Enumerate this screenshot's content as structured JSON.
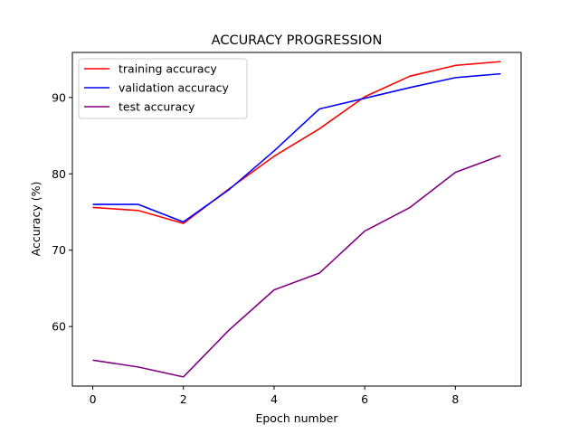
{
  "chart_data": {
    "type": "line",
    "title": "ACCURACY PROGRESSION",
    "xlabel": "Epoch number",
    "ylabel": "Accuracy (%)",
    "xlim": [
      -0.45,
      9.45
    ],
    "ylim": [
      52.2,
      95.9
    ],
    "xticks": [
      0,
      2,
      4,
      6,
      8
    ],
    "yticks": [
      60,
      70,
      80,
      90
    ],
    "grid": false,
    "legend_position": "top-left",
    "x": [
      0,
      1,
      2,
      3,
      4,
      5,
      6,
      7,
      8,
      9
    ],
    "series": [
      {
        "name": "training accuracy",
        "color": "#ff0000",
        "values": [
          75.6,
          75.2,
          73.5,
          78.0,
          82.3,
          85.9,
          90.1,
          92.8,
          94.2,
          94.7
        ]
      },
      {
        "name": "validation accuracy",
        "color": "#0000ff",
        "values": [
          76.0,
          76.0,
          73.7,
          77.9,
          83.0,
          88.5,
          89.9,
          91.3,
          92.6,
          93.1
        ]
      },
      {
        "name": "test accuracy",
        "color": "#800080",
        "values": [
          55.6,
          54.7,
          53.4,
          59.5,
          64.8,
          67.0,
          72.5,
          75.6,
          80.2,
          82.4
        ]
      }
    ]
  }
}
